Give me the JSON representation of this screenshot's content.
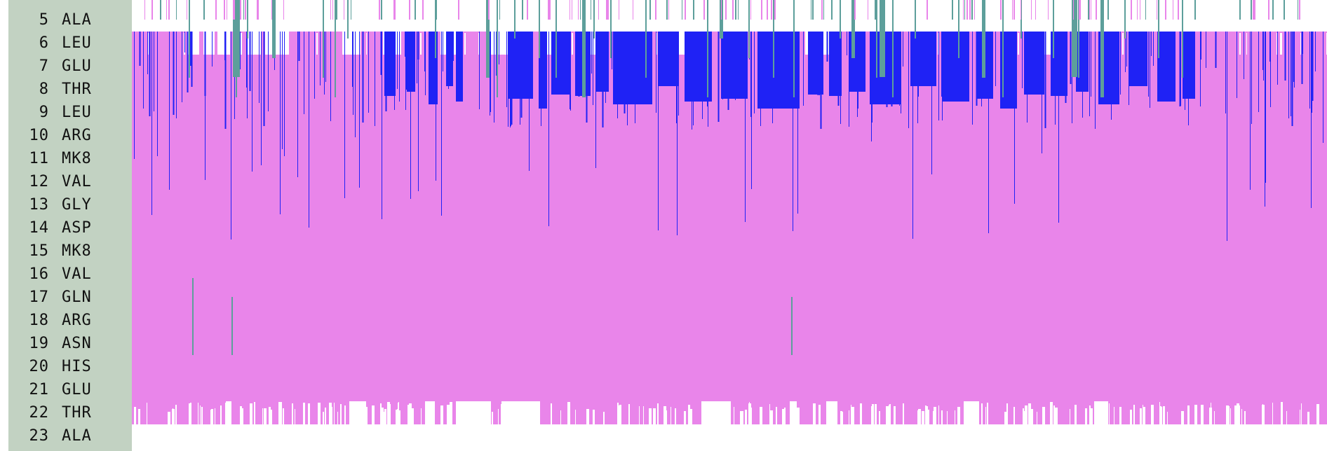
{
  "chart_data": {
    "type": "heatmap",
    "title": "",
    "xlabel": "",
    "ylabel": "",
    "colors": {
      "dominant": "#e985ea",
      "secondary": "#1f22f5",
      "accent": "#5d9f9b",
      "background": "#ffffff",
      "label_panel": "#c2d2c2"
    },
    "categories": [
      {
        "num": "5",
        "res": "ALA"
      },
      {
        "num": "6",
        "res": "LEU"
      },
      {
        "num": "7",
        "res": "GLU"
      },
      {
        "num": "8",
        "res": "THR"
      },
      {
        "num": "9",
        "res": "LEU"
      },
      {
        "num": "10",
        "res": "ARG"
      },
      {
        "num": "11",
        "res": "MK8"
      },
      {
        "num": "12",
        "res": "VAL"
      },
      {
        "num": "13",
        "res": "GLY"
      },
      {
        "num": "14",
        "res": "ASP"
      },
      {
        "num": "15",
        "res": "MK8"
      },
      {
        "num": "16",
        "res": "VAL"
      },
      {
        "num": "17",
        "res": "GLN"
      },
      {
        "num": "18",
        "res": "ARG"
      },
      {
        "num": "19",
        "res": "ASN"
      },
      {
        "num": "20",
        "res": "HIS"
      },
      {
        "num": "21",
        "res": "GLU"
      },
      {
        "num": "22",
        "res": "THR"
      },
      {
        "num": "23",
        "res": "ALA"
      }
    ],
    "fill_profile": {
      "dominant_rows": [
        "6",
        "7",
        "8",
        "9",
        "10",
        "11",
        "12",
        "13",
        "14",
        "15",
        "16",
        "17",
        "18",
        "19",
        "20",
        "21",
        "22"
      ],
      "secondary_band_rows": [
        "6",
        "7",
        "8",
        "9",
        "10"
      ],
      "sparse_rows": [
        "5",
        "22",
        "23"
      ]
    }
  }
}
